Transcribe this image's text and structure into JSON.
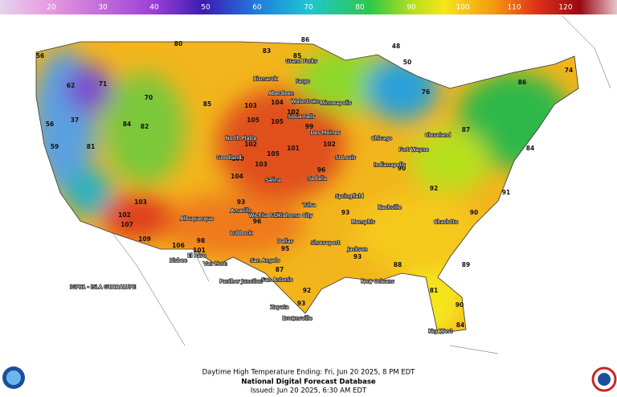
{
  "colorbar": {
    "range": [
      10,
      130
    ],
    "ticks": [
      20,
      30,
      40,
      50,
      60,
      70,
      80,
      90,
      100,
      110,
      120
    ]
  },
  "caption": {
    "line1": "Daytime High Temperature Ending: Fri, Jun 20 2025, 8 PM EDT",
    "line2": "National Digital Forecast Database",
    "line3": "Issued: Jun 20 2025, 6:30 AM EDT"
  },
  "places": [
    "Bismarck",
    "Grand Forks",
    "Fargo",
    "Minneapolis",
    "Aberdeen",
    "Watertown",
    "Sioux Falls",
    "North Platte",
    "Goodland",
    "Salina",
    "Sedalia",
    "Springfield",
    "St Louis",
    "Des Moines",
    "Chicago",
    "Fort Wayne",
    "Indianapolis",
    "Cleveland",
    "Nashville",
    "Charlotte",
    "Memphis",
    "Jackson",
    "Shreveport",
    "Dallas",
    "Wichita Falls",
    "Oklahoma City",
    "Tulsa",
    "Amarillo",
    "Lubbock",
    "Albuquerque",
    "El Paso",
    "Van Horn",
    "Bisbee",
    "Panther Junction",
    "San Angelo",
    "San Antonio",
    "Zapata",
    "Brownsville",
    "New Orleans",
    "Key West",
    "IGPB1 - ISLA GUADALUPE"
  ],
  "readings": [
    56,
    62,
    37,
    56,
    59,
    71,
    81,
    84,
    82,
    70,
    80,
    85,
    83,
    85,
    86,
    48,
    50,
    76,
    86,
    74,
    84,
    87,
    103,
    104,
    105,
    105,
    102,
    102,
    105,
    103,
    101,
    102,
    99,
    96,
    104,
    100,
    109,
    107,
    102,
    103,
    106,
    101,
    98,
    93,
    96,
    95,
    93,
    93,
    90,
    92,
    90,
    91,
    89,
    90,
    84,
    81,
    88,
    92,
    93,
    87
  ]
}
